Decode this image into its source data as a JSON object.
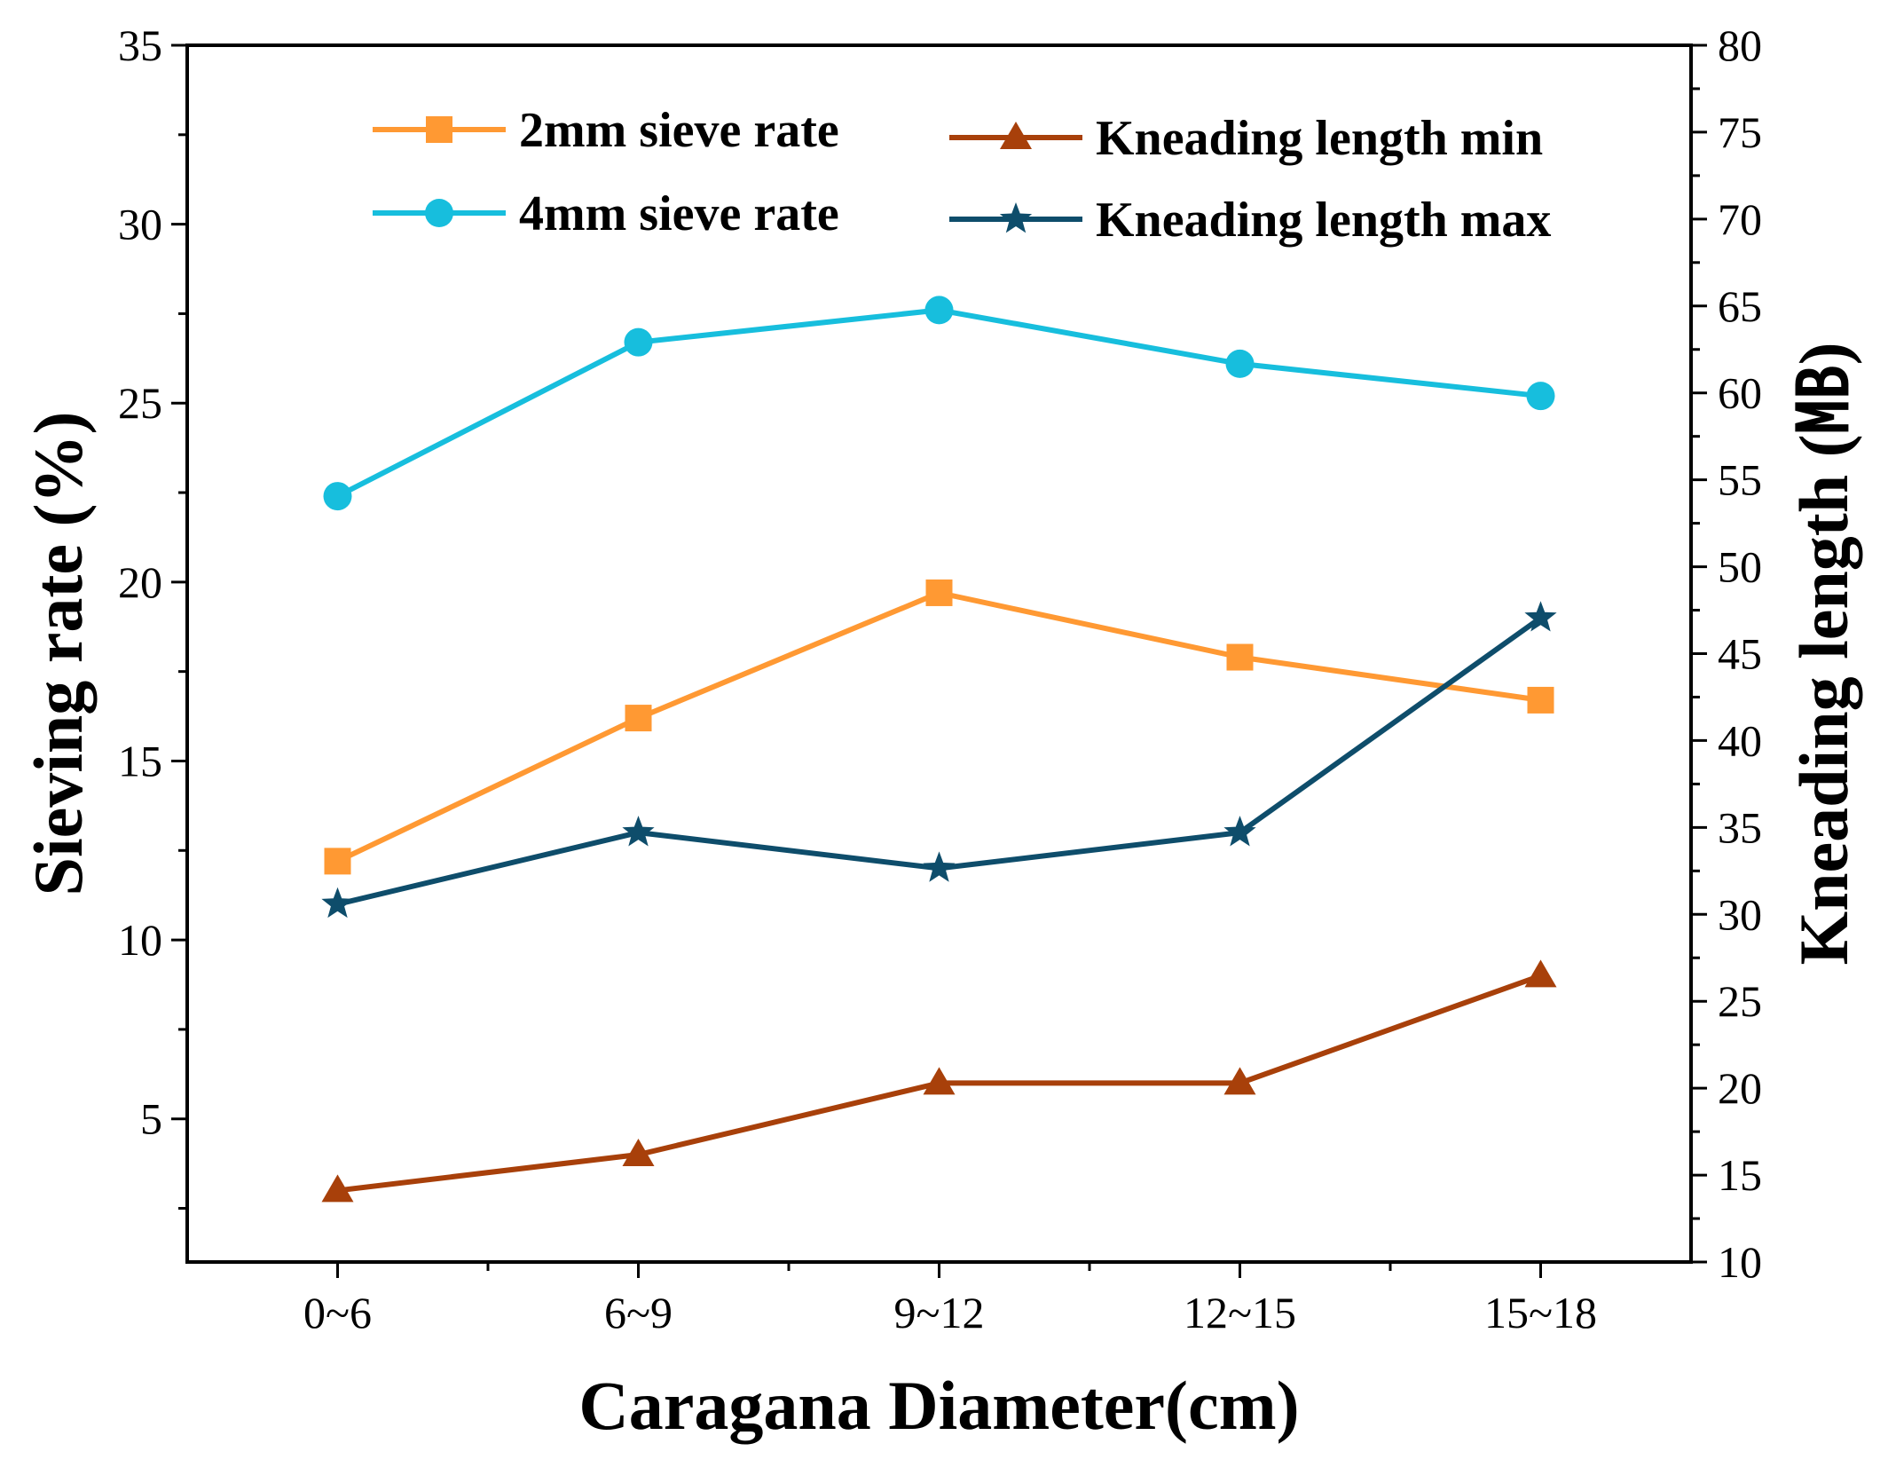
{
  "chart_data": {
    "type": "line",
    "x_categories": [
      "0~6",
      "6~9",
      "9~12",
      "12~15",
      "15~18"
    ],
    "xlabel": "Caragana Diameter(cm)",
    "ylabel_left": "Sieving rate (%)",
    "ylabel_right": "Kneading length (㎆)",
    "ylim_left": [
      1,
      35
    ],
    "ylim_right": [
      10,
      80
    ],
    "yticks_left": [
      5,
      10,
      15,
      20,
      25,
      30,
      35
    ],
    "yticks_right": [
      10,
      15,
      20,
      25,
      30,
      35,
      40,
      45,
      50,
      55,
      60,
      65,
      70,
      75,
      80
    ],
    "grid": false,
    "legend_position": "top",
    "series": [
      {
        "name": "2mm sieve rate",
        "axis": "left",
        "marker": "square",
        "color": "#FF9933",
        "values": [
          12.2,
          16.2,
          19.7,
          17.9,
          16.7
        ]
      },
      {
        "name": "4mm sieve rate",
        "axis": "left",
        "marker": "circle",
        "color": "#17BEDD",
        "values": [
          22.4,
          26.7,
          27.6,
          26.1,
          25.2
        ]
      },
      {
        "name": "Kneading length min",
        "axis": "left",
        "marker": "triangle",
        "color": "#A8400A",
        "values": [
          3,
          4,
          6,
          6,
          9
        ]
      },
      {
        "name": "Kneading length max",
        "axis": "left",
        "marker": "star",
        "color": "#0E4D6B",
        "values": [
          11,
          13,
          12,
          13,
          19
        ]
      }
    ]
  }
}
